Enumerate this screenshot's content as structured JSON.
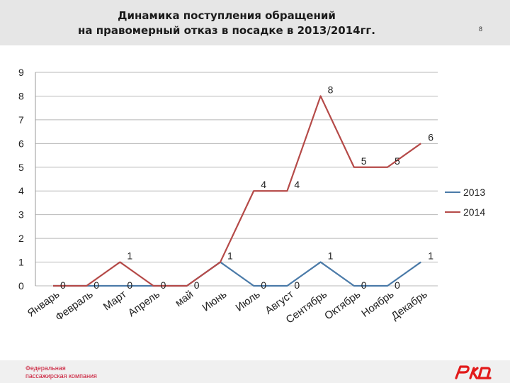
{
  "header": {
    "title_line1": "Динамика поступления обращений",
    "title_line2": "на правомерный отказ в посадке в 2013/2014гг.",
    "page_number": "8"
  },
  "footer": {
    "company_line1": "Федеральная",
    "company_line2": "пассажирская компания",
    "logo_icon": "rzd-logo-icon",
    "brand_color": "#e21a1a"
  },
  "chart_data": {
    "type": "line",
    "title": "Динамика поступления обращений на правомерный отказ в посадке в 2013/2014гг.",
    "categories": [
      "Январь",
      "Февраль",
      "Март",
      "Апрель",
      "май",
      "Июнь",
      "Июль",
      "Август",
      "Сентябрь",
      "Октябрь",
      "Ноябрь",
      "Декабрь"
    ],
    "series": [
      {
        "name": "2013",
        "color": "#4a7aa8",
        "values": [
          0,
          0,
          0,
          0,
          0,
          1,
          0,
          0,
          1,
          0,
          0,
          1
        ]
      },
      {
        "name": "2014",
        "color": "#b54a48",
        "values": [
          0,
          0,
          1,
          0,
          0,
          1,
          4,
          4,
          8,
          5,
          5,
          6
        ]
      }
    ],
    "point_labels": [
      {
        "month": "Январь",
        "text": "0"
      },
      {
        "month": "Февраль",
        "text": "0"
      },
      {
        "month": "Март",
        "text": "0"
      },
      {
        "month": "Март",
        "text": "1"
      },
      {
        "month": "Апрель",
        "text": "0"
      },
      {
        "month": "май",
        "text": "0"
      },
      {
        "month": "Июнь",
        "text": "1"
      },
      {
        "month": "Июль",
        "text": "4"
      },
      {
        "month": "Июль",
        "text": "0"
      },
      {
        "month": "Август",
        "text": "4"
      },
      {
        "month": "Август",
        "text": "0"
      },
      {
        "month": "Сентябрь",
        "text": "8"
      },
      {
        "month": "Сентябрь",
        "text": "1"
      },
      {
        "month": "Октябрь",
        "text": "5"
      },
      {
        "month": "Октябрь",
        "text": "0"
      },
      {
        "month": "Ноябрь",
        "text": "5"
      },
      {
        "month": "Ноябрь",
        "text": "0"
      },
      {
        "month": "Декабрь",
        "text": "6"
      },
      {
        "month": "Декабрь",
        "text": "1"
      }
    ],
    "y_ticks": [
      0,
      1,
      2,
      3,
      4,
      5,
      6,
      7,
      8,
      9
    ],
    "ylim": [
      0,
      9
    ],
    "grid": true,
    "legend_position": "right"
  }
}
